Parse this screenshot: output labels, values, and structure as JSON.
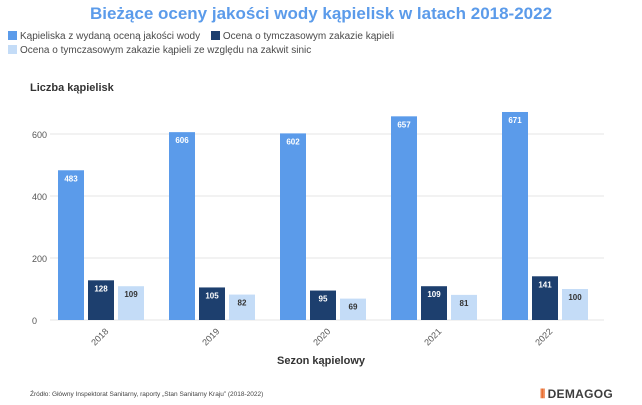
{
  "chart_data": {
    "type": "bar",
    "title": "Bieżące oceny jakości wody kąpielisk w latach 2018-2022",
    "xlabel": "Sezon kąpielowy",
    "ylabel": "Liczba kąpielisk",
    "ylim": [
      0,
      700
    ],
    "yticks": [
      0,
      200,
      400,
      600
    ],
    "grid": true,
    "legend_position": "top-left",
    "categories": [
      "2018",
      "2019",
      "2020",
      "2021",
      "2022"
    ],
    "series": [
      {
        "name": "Kąpieliska z wydaną oceną jakości wody",
        "color": "#5b9bea",
        "label_color": "#ffffff",
        "values": [
          483,
          606,
          602,
          657,
          671
        ]
      },
      {
        "name": "Ocena o tymczasowym zakazie kąpieli",
        "color": "#1d3f6e",
        "label_color": "#ffffff",
        "values": [
          128,
          105,
          95,
          109,
          141
        ]
      },
      {
        "name": "Ocena o tymczasowym zakazie kąpieli ze względu na zakwit sinic",
        "color": "#c4dcf7",
        "label_color": "#333333",
        "values": [
          109,
          82,
          69,
          81,
          100
        ]
      }
    ]
  },
  "source": "Źródło: Główny Inspektorat Sanitarny, raporty „Stan Sanitarny Kraju” (2018-2022)",
  "logo": {
    "mark": "⦀",
    "text": "DEMAGOG",
    "color": "#e86a2a"
  }
}
